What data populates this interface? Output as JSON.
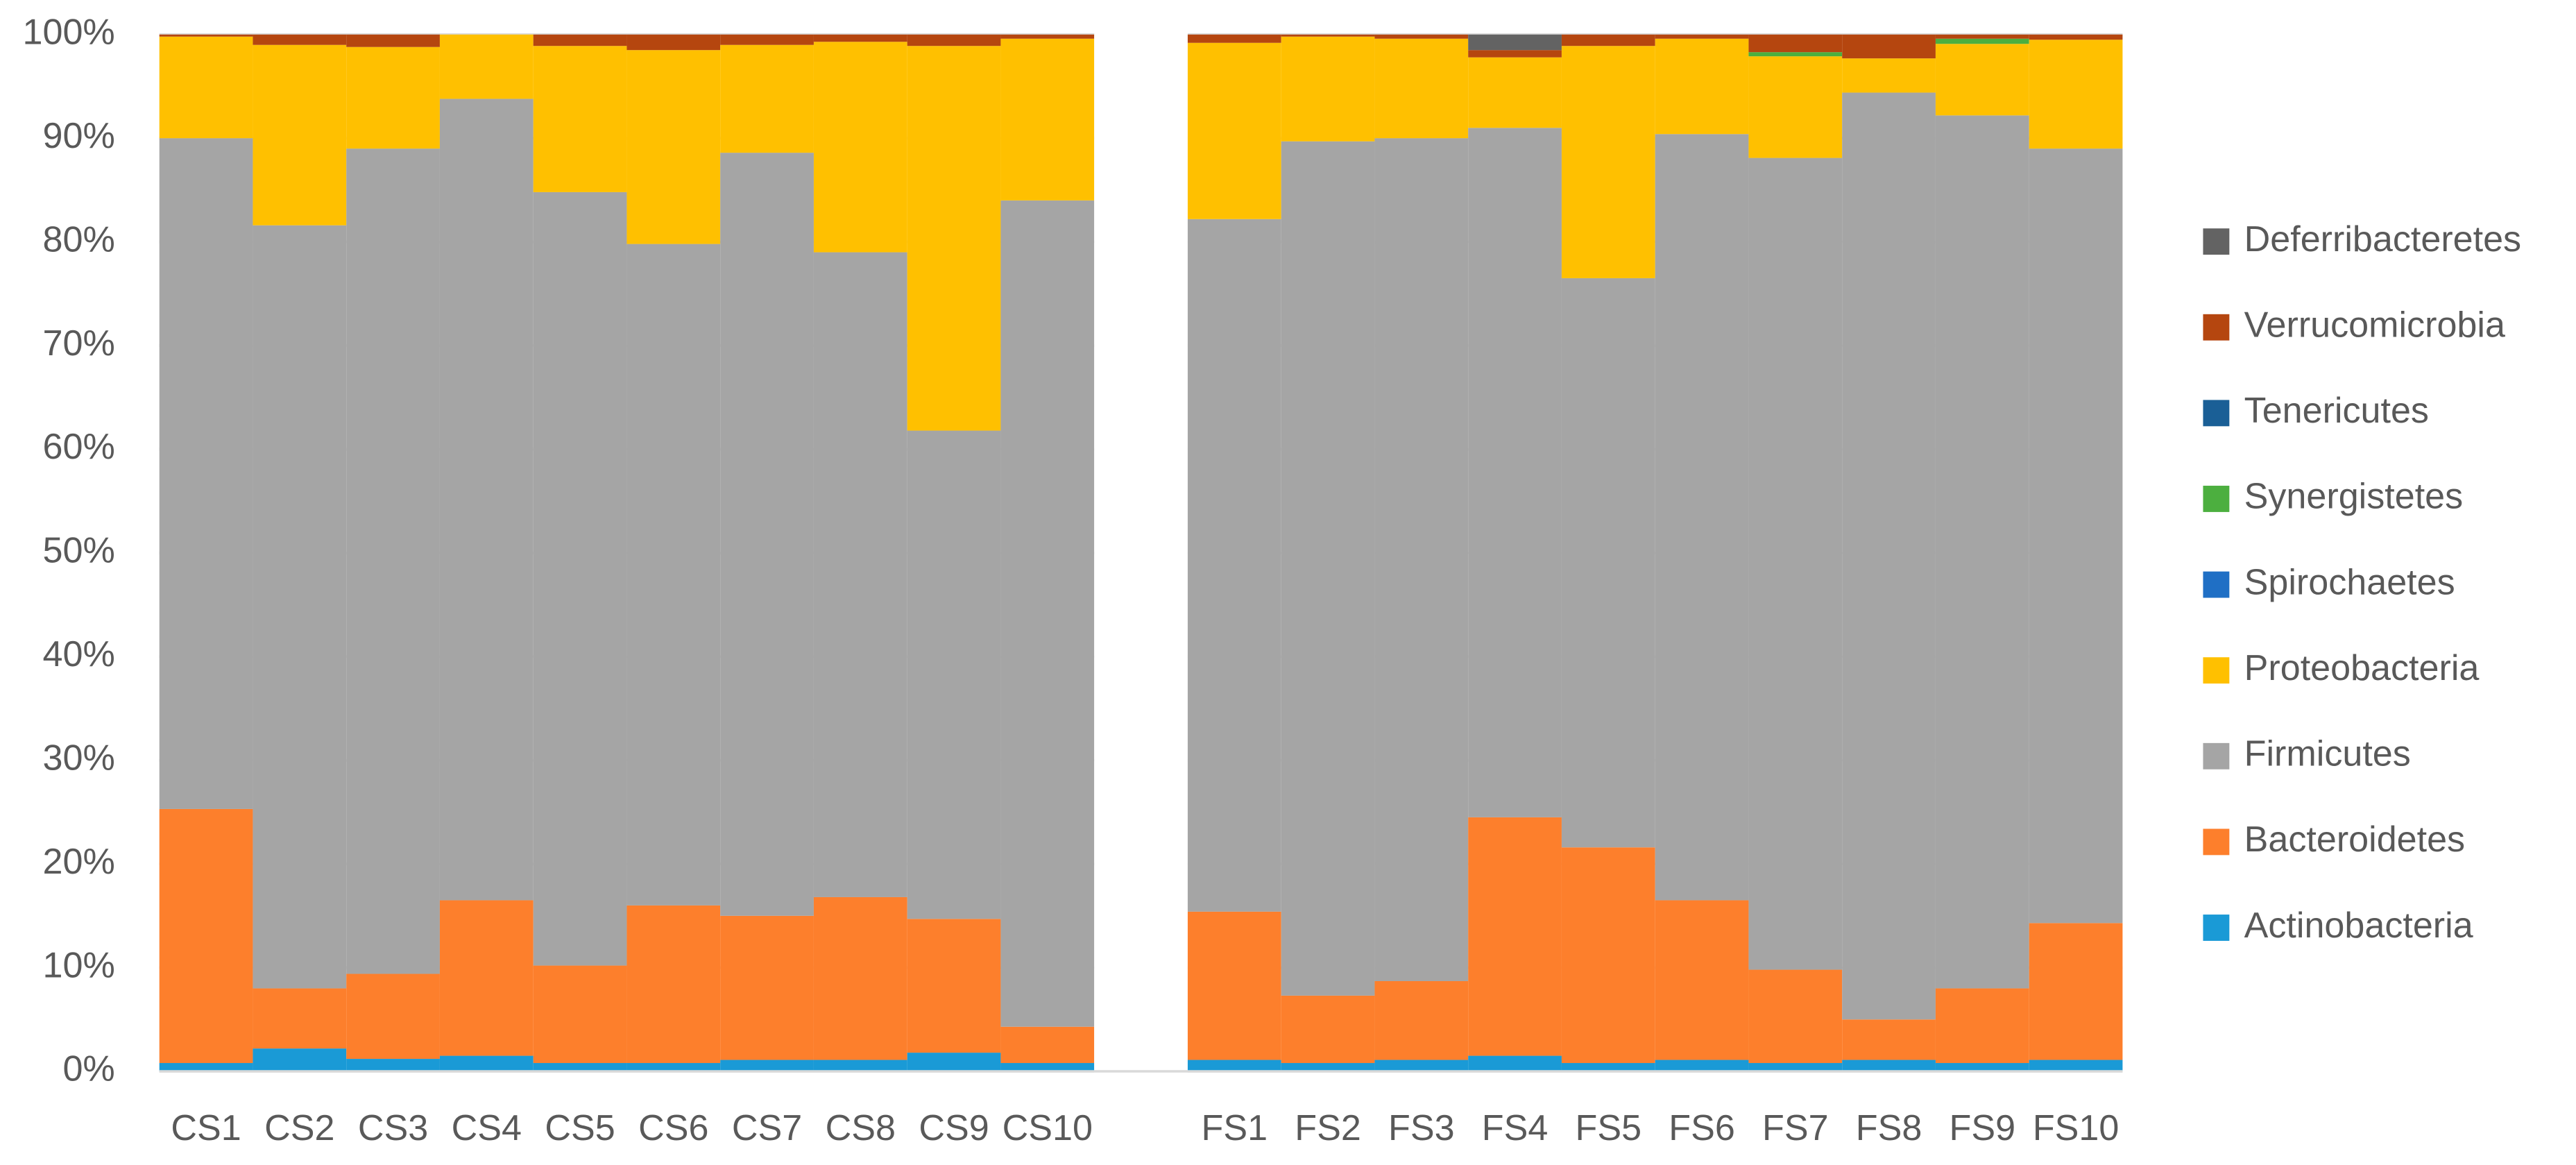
{
  "chart_data": {
    "type": "stacked_bar",
    "categories": [
      "CS1",
      "CS2",
      "CS3",
      "CS4",
      "CS5",
      "CS6",
      "CS7",
      "CS8",
      "CS9",
      "CS10",
      null,
      "FS1",
      "FS2",
      "FS3",
      "FS4",
      "FS5",
      "FS6",
      "FS7",
      "FS8",
      "FS9",
      "FS10"
    ],
    "ylim": [
      0,
      100
    ],
    "yticks": [
      {
        "value": 0,
        "label": "0%"
      },
      {
        "value": 10,
        "label": "10%"
      },
      {
        "value": 20,
        "label": "20%"
      },
      {
        "value": 30,
        "label": "30%"
      },
      {
        "value": 40,
        "label": "40%"
      },
      {
        "value": 50,
        "label": "50%"
      },
      {
        "value": 60,
        "label": "60%"
      },
      {
        "value": 70,
        "label": "70%"
      },
      {
        "value": 80,
        "label": "80%"
      },
      {
        "value": 90,
        "label": "90%"
      },
      {
        "value": 100,
        "label": "100%"
      }
    ],
    "grid": true,
    "legend": "right",
    "series": [
      {
        "name": "Actinobacteria",
        "color": "#1a9ad6",
        "values": [
          0.8,
          2.2,
          1.2,
          1.5,
          0.8,
          0.8,
          1.1,
          1.1,
          1.8,
          0.8,
          null,
          1.1,
          0.8,
          1.1,
          1.5,
          0.8,
          1.1,
          0.8,
          1.1,
          0.8,
          1.1
        ]
      },
      {
        "name": "Bacteroidetes",
        "color": "#fd7f2c",
        "values": [
          24.5,
          5.8,
          8.2,
          15,
          9.4,
          15.2,
          13.9,
          15.7,
          12.9,
          3.5,
          null,
          14.3,
          6.5,
          7.6,
          23,
          20.8,
          15.4,
          9.0,
          3.9,
          7.2,
          13.2
        ]
      },
      {
        "name": "Firmicutes",
        "color": "#a5a5a5",
        "values": [
          64.7,
          73.6,
          79.6,
          77.3,
          74.6,
          63.8,
          73.6,
          62.2,
          47.1,
          79.7,
          null,
          66.8,
          82.4,
          81.3,
          66.5,
          54.9,
          73.9,
          78.3,
          89.4,
          84.2,
          74.7
        ]
      },
      {
        "name": "Proteobacteria",
        "color": "#ffc000",
        "values": [
          9.8,
          17.4,
          9.8,
          6.2,
          14.1,
          18.7,
          10.4,
          20.3,
          37.1,
          15.6,
          null,
          17.0,
          10.1,
          9.6,
          6.8,
          22.4,
          9.2,
          9.8,
          3.3,
          6.9,
          10.5
        ]
      },
      {
        "name": "Spirochaetes",
        "color": "#1f6fc5",
        "values": [
          0,
          0,
          0,
          0,
          0,
          0,
          0,
          0,
          0,
          0,
          null,
          0,
          0,
          0,
          0,
          0,
          0,
          0,
          0,
          0,
          0
        ]
      },
      {
        "name": "Synergistetes",
        "color": "#4caf3f",
        "values": [
          0,
          0,
          0,
          0,
          0,
          0,
          0,
          0,
          0,
          0,
          null,
          0,
          0,
          0,
          0,
          0,
          0,
          0.4,
          0,
          0.5,
          0
        ]
      },
      {
        "name": "Tenericutes",
        "color": "#1a5f96",
        "values": [
          0,
          0,
          0,
          0,
          0,
          0,
          0,
          0,
          0,
          0,
          null,
          0,
          0,
          0,
          0,
          0,
          0,
          0,
          0,
          0,
          0
        ]
      },
      {
        "name": "Verrucomicrobia",
        "color": "#b5460f",
        "values": [
          0.2,
          1.0,
          1.2,
          0,
          1.1,
          1.5,
          1.0,
          0.7,
          1.1,
          0.4,
          null,
          0.8,
          0.2,
          0.4,
          0.7,
          1.1,
          0.4,
          1.7,
          2.3,
          0.4,
          0.5
        ]
      },
      {
        "name": "Deferribacteretes",
        "color": "#636363",
        "values": [
          0,
          0,
          0,
          0,
          0,
          0,
          0,
          0,
          0,
          0,
          null,
          0,
          0,
          0,
          1.5,
          0,
          0,
          0,
          0,
          0,
          0
        ]
      }
    ]
  }
}
